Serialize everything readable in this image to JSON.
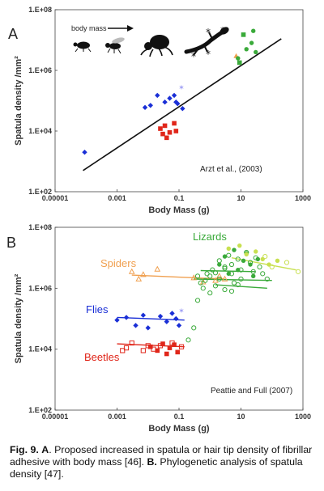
{
  "colors": {
    "diptera": "#1a2fd6",
    "coleoptera": "#e0261a",
    "arachnida": "#f0a050",
    "lizards": "#3aaa3a",
    "lizard_light": "#c8e050",
    "bug": "#7b7bf0",
    "line": "#111111"
  },
  "icons": [
    "beetle-icon",
    "fly-icon",
    "spider-icon",
    "gecko-icon"
  ],
  "caption": {
    "fig_label": "Fig. 9.",
    "a_label": "A",
    "a_text": ". Proposed increased in spatula or hair tip density of fibrillar adhesive with body mass [46].",
    "b_label": "B.",
    "b_text": "Phylogenetic analysis of  spatula density [47]."
  },
  "chart_data": [
    {
      "panel": "A",
      "type": "scatter",
      "xlabel": "Body Mass (g)",
      "ylabel": "Spatula density /mm²",
      "xscale": "log",
      "yscale": "log",
      "xlim": [
        1e-05,
        1000
      ],
      "ylim": [
        100,
        100000000
      ],
      "xticks": [
        "0.00001",
        "0.001",
        "0.1",
        "10",
        "1000"
      ],
      "yticks": [
        "1.E+02",
        "1.E+04",
        "1.E+06",
        "1.E+08"
      ],
      "annotation": "body mass",
      "citation": "Arzt et al.,  (2003)",
      "fit_line": {
        "x": [
          8e-05,
          200
        ],
        "y": [
          500,
          11000000
        ]
      },
      "series": [
        {
          "group": "diptera",
          "marker": "diamond",
          "x": [
            9e-05,
            0.008,
            0.012,
            0.02,
            0.035,
            0.05,
            0.07,
            0.08,
            0.09,
            0.13
          ],
          "y": [
            2000,
            60000,
            70000,
            150000,
            90000,
            120000,
            150000,
            90000,
            80000,
            55000
          ]
        },
        {
          "group": "bug",
          "marker": "star",
          "x": [
            0.12
          ],
          "y": [
            250000
          ]
        },
        {
          "group": "coleoptera",
          "marker": "square",
          "x": [
            0.025,
            0.03,
            0.035,
            0.04,
            0.05,
            0.07,
            0.08
          ],
          "y": [
            12000,
            8000,
            15000,
            6000,
            9000,
            18000,
            10000
          ]
        },
        {
          "group": "arachnida",
          "marker": "triangle",
          "x": [
            7
          ],
          "y": [
            3000000
          ]
        },
        {
          "group": "lizards",
          "marker": "circle",
          "x": [
            8,
            15,
            22,
            25,
            30
          ],
          "y": [
            2500000,
            5000000,
            8000000,
            20000000,
            4000000
          ]
        },
        {
          "group": "lizards",
          "marker": "square",
          "x": [
            9,
            12
          ],
          "y": [
            1800000,
            15000000
          ]
        }
      ]
    },
    {
      "panel": "B",
      "type": "scatter",
      "xlabel": "Body Mass (g)",
      "ylabel": "Spatula density /mm²",
      "xscale": "log",
      "yscale": "log",
      "xlim": [
        1e-05,
        1000
      ],
      "ylim": [
        100,
        100000000
      ],
      "xticks": [
        "0.00001",
        "0.001",
        "0.1",
        "10",
        "1000"
      ],
      "yticks": [
        "1.E+02",
        "1.E+04",
        "1.E+06",
        "1.E+08"
      ],
      "citation": "Peattie and Full (2007)",
      "group_labels": [
        {
          "group": "lizards",
          "text": "Lizards"
        },
        {
          "group": "arachnida",
          "text": "Spiders"
        },
        {
          "group": "diptera",
          "text": "Flies"
        },
        {
          "group": "coleoptera",
          "text": "Beetles"
        }
      ],
      "fit_lines": [
        {
          "group": "arachnida",
          "x": [
            0.003,
            3
          ],
          "y": [
            2700000,
            2000000
          ]
        },
        {
          "group": "diptera",
          "x": [
            0.001,
            0.15
          ],
          "y": [
            110000,
            90000
          ]
        },
        {
          "group": "coleoptera",
          "x": [
            0.001,
            0.15
          ],
          "y": [
            15000,
            12000
          ]
        },
        {
          "group": "lizards",
          "x": [
            0.5,
            30
          ],
          "y": [
            3800000,
            3500000
          ]
        },
        {
          "group": "lizards",
          "x": [
            0.3,
            100
          ],
          "y": [
            2000000,
            1800000
          ]
        },
        {
          "group": "lizards",
          "x": [
            1.5,
            70
          ],
          "y": [
            1300000,
            1000000
          ]
        },
        {
          "group": "lizard_light",
          "x": [
            5,
            600
          ],
          "y": [
            10000000,
            4000000
          ]
        }
      ],
      "series": [
        {
          "group": "arachnida",
          "marker": "triangle-open",
          "x": [
            0.003,
            0.005,
            0.007,
            0.02,
            0.3,
            0.6,
            1.5,
            2,
            3
          ],
          "y": [
            3500000,
            2000000,
            2800000,
            4200000,
            2200000,
            1600000,
            1800000,
            2500000,
            2000000
          ]
        },
        {
          "group": "diptera",
          "marker": "diamond",
          "x": [
            0.001,
            0.002,
            0.004,
            0.007,
            0.01,
            0.025,
            0.04,
            0.06,
            0.08,
            0.1
          ],
          "y": [
            90000,
            110000,
            60000,
            130000,
            50000,
            120000,
            80000,
            150000,
            100000,
            60000
          ]
        },
        {
          "group": "bug",
          "marker": "star",
          "x": [
            0.12
          ],
          "y": [
            170000
          ]
        },
        {
          "group": "coleoptera",
          "marker": "square",
          "x": [
            0.012,
            0.02,
            0.03,
            0.04,
            0.05,
            0.07,
            0.09
          ],
          "y": [
            12000,
            9000,
            15000,
            7000,
            11000,
            14000,
            8000
          ]
        },
        {
          "group": "coleoptera",
          "marker": "square-open",
          "x": [
            0.0015,
            0.002,
            0.003,
            0.007,
            0.01,
            0.015,
            0.025,
            0.06,
            0.12
          ],
          "y": [
            9000,
            11000,
            16000,
            9000,
            13000,
            10000,
            13000,
            16000,
            12000
          ]
        },
        {
          "group": "lizards",
          "marker": "circle-open",
          "x": [
            0.2,
            0.3,
            0.4,
            0.5,
            0.6,
            0.8,
            1,
            1,
            1.2,
            1.5,
            2,
            2,
            3,
            3,
            4,
            5,
            5,
            6,
            8,
            10,
            10,
            15,
            20,
            25,
            30,
            40,
            50,
            70,
            0.4,
            0.7,
            1.5,
            3,
            5,
            8
          ],
          "y": [
            20000,
            50000,
            400000,
            1500000,
            1000000,
            3000000,
            2500000,
            700000,
            4000000,
            1200000,
            8000000,
            2000000,
            5000000,
            900000,
            12000000,
            3000000,
            6000000,
            1500000,
            9000000,
            4000000,
            2000000,
            15000000,
            7000000,
            3500000,
            10000000,
            5000000,
            3000000,
            2000000,
            2500000,
            1800000,
            3200000,
            4500000,
            800000,
            1300000
          ]
        },
        {
          "group": "lizards",
          "marker": "circle",
          "x": [
            2,
            3,
            4,
            6,
            8,
            12,
            15,
            20,
            25,
            35
          ],
          "y": [
            6000000,
            11000000,
            3000000,
            18000000,
            4000000,
            8000000,
            14000000,
            6000000,
            2500000,
            9000000
          ]
        },
        {
          "group": "lizard_light",
          "marker": "circle",
          "x": [
            4,
            9,
            15,
            30,
            50,
            80,
            150
          ],
          "y": [
            20000000,
            25000000,
            13000000,
            16000000,
            9000000,
            6000000,
            8000000
          ]
        },
        {
          "group": "lizard_light",
          "marker": "circle-open",
          "x": [
            60,
            100,
            300,
            700
          ],
          "y": [
            11000000,
            5000000,
            7000000,
            3500000
          ]
        }
      ]
    }
  ]
}
